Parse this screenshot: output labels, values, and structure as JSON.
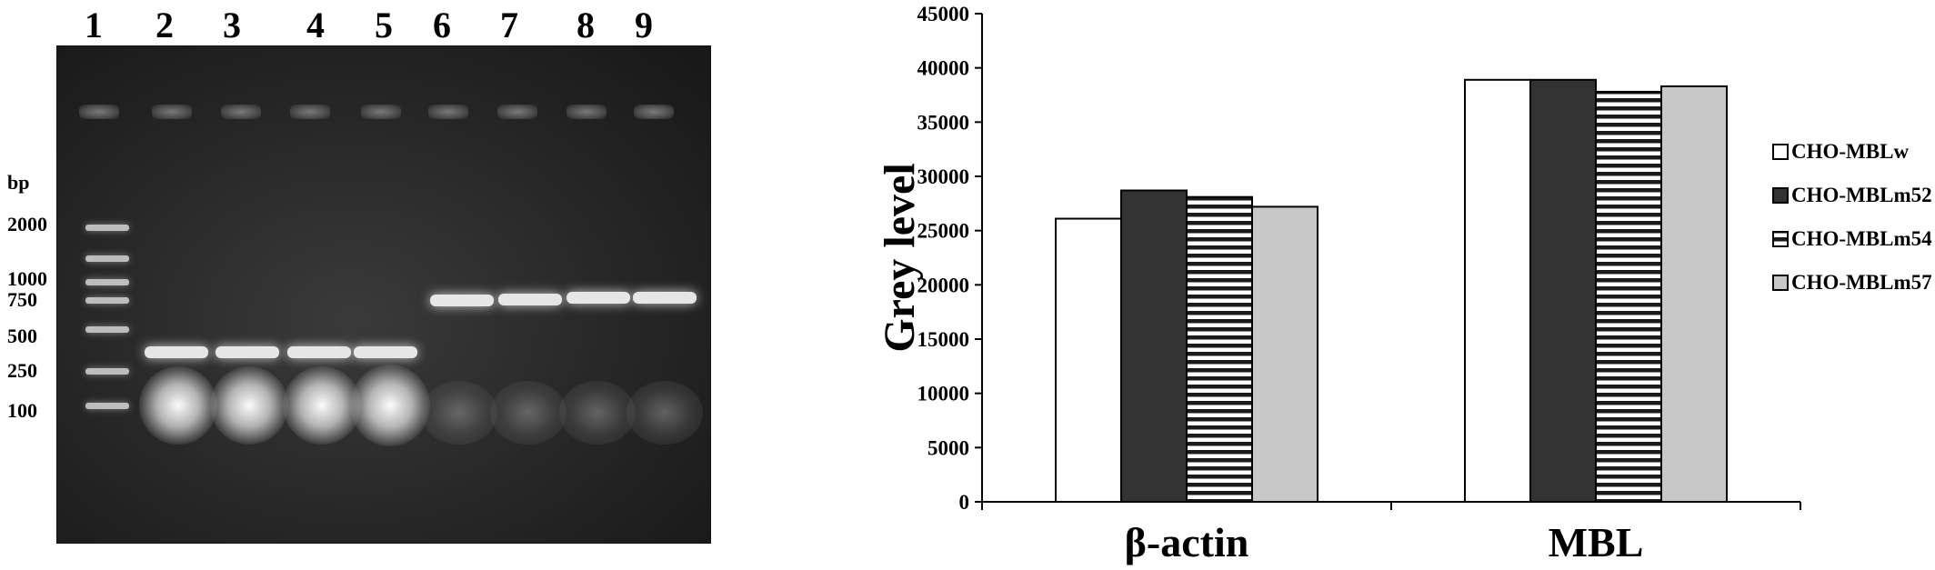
{
  "gel": {
    "lane_numbers": [
      "1",
      "2",
      "3",
      "4",
      "5",
      "6",
      "7",
      "8",
      "9"
    ],
    "unit_label": "bp",
    "marker_labels": [
      "2000",
      "1000",
      "750",
      "500",
      "250",
      "100"
    ]
  },
  "chart_data": {
    "type": "bar",
    "title": "",
    "xlabel": "",
    "ylabel": "Grey level",
    "ylim": [
      0,
      45000
    ],
    "yticks": [
      0,
      5000,
      10000,
      15000,
      20000,
      25000,
      30000,
      35000,
      40000,
      45000
    ],
    "categories": [
      "β-actin",
      "MBL"
    ],
    "grid": false,
    "legend_position": "right",
    "series": [
      {
        "name": "CHO-MBLw",
        "values": [
          26100,
          38900
        ],
        "fill": "#ffffff",
        "pattern": "solid"
      },
      {
        "name": "CHO-MBLm52",
        "values": [
          28700,
          38900
        ],
        "fill": "#333333",
        "pattern": "solid"
      },
      {
        "name": "CHO-MBLm54",
        "values": [
          28100,
          37800
        ],
        "fill": "#ffffff",
        "pattern": "horizontal-stripes"
      },
      {
        "name": "CHO-MBLm57",
        "values": [
          27200,
          38300
        ],
        "fill": "#c8c8c8",
        "pattern": "solid"
      }
    ]
  }
}
